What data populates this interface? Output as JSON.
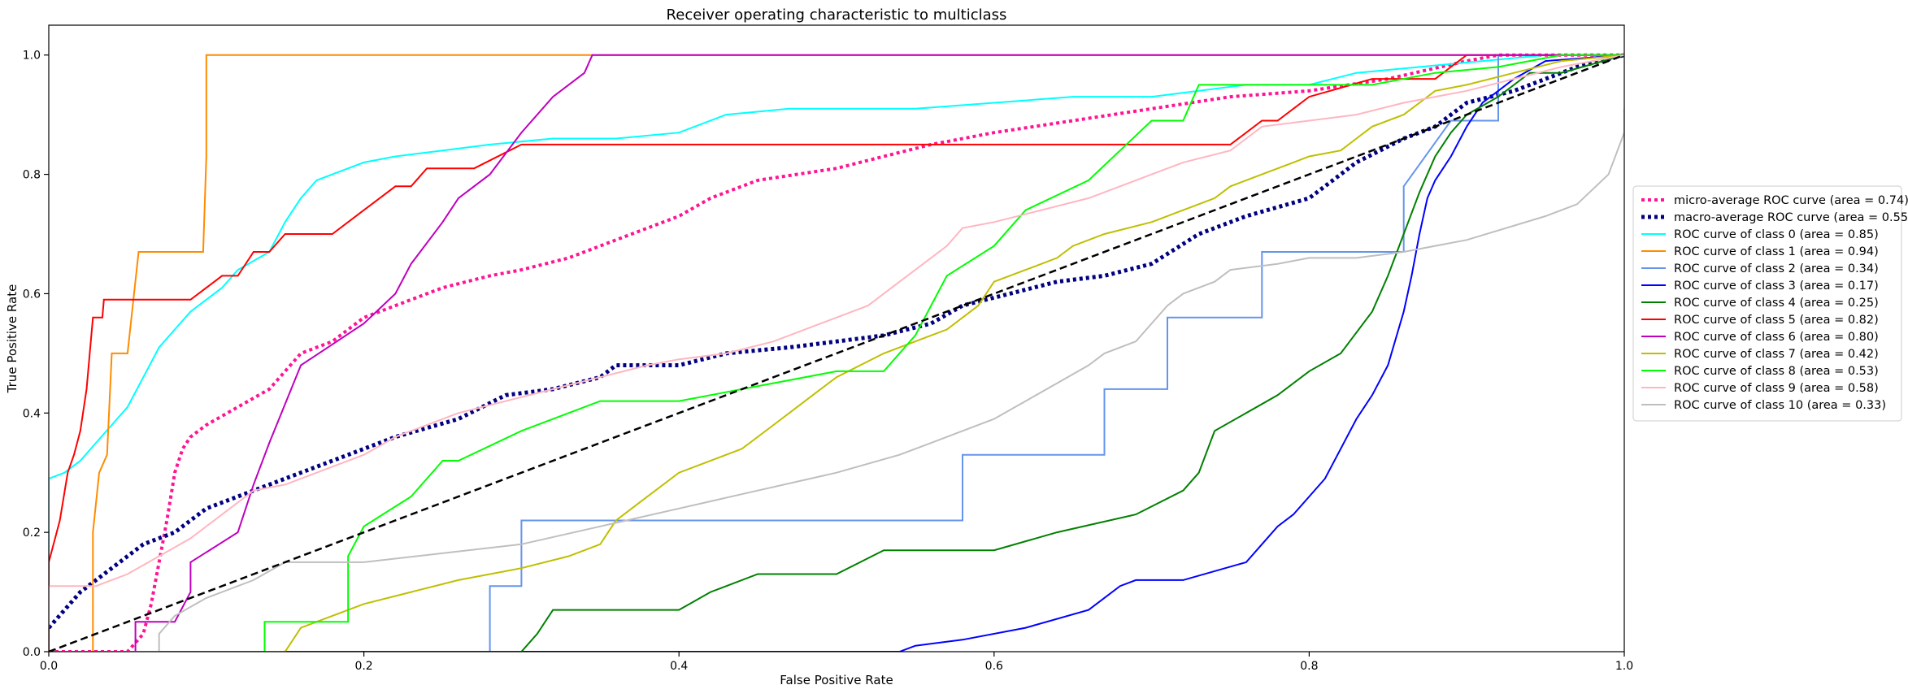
{
  "chart_data": {
    "type": "line",
    "title": "Receiver operating characteristic to multiclass",
    "xlabel": "False Positive Rate",
    "ylabel": "True Positive Rate",
    "xlim": [
      0.0,
      1.0
    ],
    "ylim": [
      0.0,
      1.05
    ],
    "grid": false,
    "legend_position": "center-right-outside",
    "xticks": [
      0.0,
      0.2,
      0.4,
      0.6,
      0.8,
      1.0
    ],
    "xtick_labels": [
      "0.0",
      "0.2",
      "0.4",
      "0.6",
      "0.8",
      "1.0"
    ],
    "yticks": [
      0.0,
      0.2,
      0.4,
      0.6,
      0.8,
      1.0
    ],
    "ytick_labels": [
      "0.0",
      "0.2",
      "0.4",
      "0.6",
      "0.8",
      "1.0"
    ],
    "series": [
      {
        "name": "micro-average ROC curve (area = 0.74)",
        "color": "#ff1493",
        "style": "dotted",
        "width": 4,
        "x": [
          0,
          0.05,
          0.06,
          0.065,
          0.07,
          0.075,
          0.08,
          0.085,
          0.09,
          0.1,
          0.12,
          0.14,
          0.16,
          0.18,
          0.2,
          0.22,
          0.25,
          0.28,
          0.3,
          0.33,
          0.36,
          0.4,
          0.42,
          0.45,
          0.5,
          0.53,
          0.56,
          0.6,
          0.65,
          0.7,
          0.75,
          0.8,
          0.85,
          0.9,
          0.92,
          0.96,
          1.0
        ],
        "y": [
          0,
          0,
          0.03,
          0.08,
          0.15,
          0.22,
          0.3,
          0.34,
          0.36,
          0.38,
          0.41,
          0.44,
          0.5,
          0.52,
          0.56,
          0.58,
          0.61,
          0.63,
          0.64,
          0.66,
          0.69,
          0.73,
          0.76,
          0.79,
          0.81,
          0.83,
          0.85,
          0.87,
          0.89,
          0.91,
          0.93,
          0.94,
          0.96,
          0.99,
          1.0,
          1.0,
          1.0
        ]
      },
      {
        "name": "macro-average ROC curve (area = 0.55)",
        "color": "#000080",
        "style": "dotted",
        "width": 5,
        "x": [
          0,
          0.02,
          0.04,
          0.06,
          0.08,
          0.1,
          0.13,
          0.16,
          0.19,
          0.22,
          0.26,
          0.29,
          0.32,
          0.35,
          0.36,
          0.4,
          0.43,
          0.47,
          0.5,
          0.53,
          0.56,
          0.58,
          0.61,
          0.64,
          0.67,
          0.7,
          0.73,
          0.76,
          0.8,
          0.83,
          0.86,
          0.88,
          0.9,
          0.93,
          0.95,
          0.97,
          1.0
        ],
        "y": [
          0.04,
          0.1,
          0.14,
          0.18,
          0.2,
          0.24,
          0.27,
          0.3,
          0.33,
          0.36,
          0.39,
          0.43,
          0.44,
          0.46,
          0.48,
          0.48,
          0.5,
          0.51,
          0.52,
          0.53,
          0.55,
          0.58,
          0.6,
          0.62,
          0.63,
          0.65,
          0.7,
          0.73,
          0.76,
          0.82,
          0.86,
          0.88,
          0.92,
          0.94,
          0.96,
          0.98,
          1.0
        ]
      },
      {
        "name": "ROC curve of class 0 (area = 0.85)",
        "color": "#00ffff",
        "style": "solid",
        "width": 2,
        "x": [
          0,
          0,
          0.01,
          0.02,
          0.03,
          0.04,
          0.05,
          0.06,
          0.07,
          0.08,
          0.09,
          0.1,
          0.11,
          0.12,
          0.14,
          0.15,
          0.16,
          0.17,
          0.18,
          0.2,
          0.22,
          0.25,
          0.28,
          0.32,
          0.36,
          0.4,
          0.43,
          0.47,
          0.5,
          0.55,
          0.6,
          0.65,
          0.7,
          0.73,
          0.76,
          0.8,
          0.83,
          0.87,
          0.91,
          0.95,
          1.0
        ],
        "y": [
          0,
          0.29,
          0.3,
          0.32,
          0.35,
          0.38,
          0.41,
          0.46,
          0.51,
          0.54,
          0.57,
          0.59,
          0.61,
          0.64,
          0.67,
          0.72,
          0.76,
          0.79,
          0.8,
          0.82,
          0.83,
          0.84,
          0.85,
          0.86,
          0.86,
          0.87,
          0.9,
          0.91,
          0.91,
          0.91,
          0.92,
          0.93,
          0.93,
          0.94,
          0.95,
          0.95,
          0.97,
          0.98,
          0.99,
          1.0,
          1.0
        ]
      },
      {
        "name": "ROC curve of class 1 (area = 0.94)",
        "color": "#ff8c00",
        "style": "solid",
        "width": 2,
        "x": [
          0,
          0.028,
          0.028,
          0.032,
          0.037,
          0.04,
          0.045,
          0.05,
          0.057,
          0.06,
          0.07,
          0.08,
          0.09,
          0.098,
          0.1,
          0.1,
          0.15,
          0.2,
          0.3,
          0.4,
          0.5,
          0.6,
          0.7,
          0.8,
          0.9,
          1.0
        ],
        "y": [
          0,
          0,
          0.2,
          0.3,
          0.33,
          0.5,
          0.5,
          0.5,
          0.67,
          0.67,
          0.67,
          0.67,
          0.67,
          0.67,
          0.83,
          1.0,
          1.0,
          1.0,
          1.0,
          1.0,
          1.0,
          1.0,
          1.0,
          1.0,
          1.0,
          1.0
        ]
      },
      {
        "name": "ROC curve of class 2 (area = 0.34)",
        "color": "#6495ed",
        "style": "solid",
        "width": 2,
        "x": [
          0,
          0.28,
          0.28,
          0.3,
          0.3,
          0.35,
          0.4,
          0.45,
          0.5,
          0.58,
          0.58,
          0.62,
          0.66,
          0.67,
          0.67,
          0.69,
          0.7,
          0.71,
          0.71,
          0.73,
          0.75,
          0.77,
          0.77,
          0.8,
          0.82,
          0.83,
          0.84,
          0.85,
          0.86,
          0.86,
          0.89,
          0.91,
          0.92,
          0.92,
          0.95,
          1.0
        ],
        "y": [
          0,
          0,
          0.11,
          0.11,
          0.22,
          0.22,
          0.22,
          0.22,
          0.22,
          0.22,
          0.33,
          0.33,
          0.33,
          0.33,
          0.44,
          0.44,
          0.44,
          0.44,
          0.56,
          0.56,
          0.56,
          0.56,
          0.67,
          0.67,
          0.67,
          0.67,
          0.67,
          0.67,
          0.67,
          0.78,
          0.89,
          0.89,
          0.89,
          1.0,
          1.0,
          1.0
        ]
      },
      {
        "name": "ROC curve of class 3 (area = 0.17)",
        "color": "#0000ff",
        "style": "solid",
        "width": 2,
        "x": [
          0,
          0.54,
          0.55,
          0.58,
          0.62,
          0.66,
          0.68,
          0.69,
          0.72,
          0.76,
          0.77,
          0.78,
          0.79,
          0.8,
          0.81,
          0.82,
          0.83,
          0.84,
          0.85,
          0.86,
          0.865,
          0.87,
          0.875,
          0.88,
          0.89,
          0.9,
          0.91,
          0.92,
          0.93,
          0.95,
          1.0
        ],
        "y": [
          0,
          0,
          0.01,
          0.02,
          0.04,
          0.07,
          0.11,
          0.12,
          0.12,
          0.15,
          0.18,
          0.21,
          0.23,
          0.26,
          0.29,
          0.34,
          0.39,
          0.43,
          0.48,
          0.57,
          0.63,
          0.7,
          0.76,
          0.79,
          0.83,
          0.88,
          0.92,
          0.94,
          0.96,
          0.99,
          1.0
        ]
      },
      {
        "name": "ROC curve of class 4 (area = 0.25)",
        "color": "#008000",
        "style": "solid",
        "width": 2,
        "x": [
          0,
          0.3,
          0.31,
          0.32,
          0.4,
          0.42,
          0.45,
          0.5,
          0.53,
          0.6,
          0.64,
          0.69,
          0.72,
          0.73,
          0.74,
          0.76,
          0.78,
          0.8,
          0.82,
          0.84,
          0.85,
          0.86,
          0.87,
          0.88,
          0.89,
          0.9,
          0.92,
          0.94,
          0.96,
          1.0
        ],
        "y": [
          0,
          0,
          0.03,
          0.07,
          0.07,
          0.1,
          0.13,
          0.13,
          0.17,
          0.17,
          0.2,
          0.23,
          0.27,
          0.3,
          0.37,
          0.4,
          0.43,
          0.47,
          0.5,
          0.57,
          0.63,
          0.7,
          0.77,
          0.83,
          0.87,
          0.9,
          0.93,
          0.97,
          0.97,
          1.0
        ]
      },
      {
        "name": "ROC curve of class 5 (area = 0.82)",
        "color": "#ff0000",
        "style": "solid",
        "width": 2,
        "x": [
          0,
          0,
          0.007,
          0.012,
          0.016,
          0.02,
          0.024,
          0.028,
          0.034,
          0.035,
          0.04,
          0.05,
          0.09,
          0.11,
          0.12,
          0.13,
          0.14,
          0.15,
          0.16,
          0.18,
          0.2,
          0.22,
          0.23,
          0.24,
          0.27,
          0.3,
          0.35,
          0.45,
          0.5,
          0.6,
          0.7,
          0.75,
          0.77,
          0.78,
          0.8,
          0.84,
          0.88,
          0.9,
          0.92,
          0.95,
          1.0
        ],
        "y": [
          0,
          0.15,
          0.22,
          0.3,
          0.33,
          0.37,
          0.44,
          0.56,
          0.56,
          0.59,
          0.59,
          0.59,
          0.59,
          0.63,
          0.63,
          0.67,
          0.67,
          0.7,
          0.7,
          0.7,
          0.74,
          0.78,
          0.78,
          0.81,
          0.81,
          0.85,
          0.85,
          0.85,
          0.85,
          0.85,
          0.85,
          0.85,
          0.89,
          0.89,
          0.93,
          0.96,
          0.96,
          1.0,
          1.0,
          1.0,
          1.0
        ]
      },
      {
        "name": "ROC curve of class 6 (area = 0.80)",
        "color": "#bf00bf",
        "style": "solid",
        "width": 2,
        "x": [
          0,
          0.055,
          0.055,
          0.08,
          0.09,
          0.09,
          0.12,
          0.13,
          0.14,
          0.16,
          0.2,
          0.22,
          0.23,
          0.25,
          0.26,
          0.28,
          0.3,
          0.32,
          0.33,
          0.34,
          0.345,
          0.35,
          0.5,
          0.75,
          1.0
        ],
        "y": [
          0,
          0,
          0.05,
          0.05,
          0.1,
          0.15,
          0.2,
          0.28,
          0.35,
          0.48,
          0.55,
          0.6,
          0.65,
          0.72,
          0.76,
          0.8,
          0.87,
          0.93,
          0.95,
          0.97,
          1.0,
          1.0,
          1.0,
          1.0,
          1.0
        ]
      },
      {
        "name": "ROC curve of class 7 (area = 0.42)",
        "color": "#bfbf00",
        "style": "solid",
        "width": 2,
        "x": [
          0,
          0.15,
          0.16,
          0.18,
          0.2,
          0.23,
          0.26,
          0.3,
          0.33,
          0.35,
          0.36,
          0.38,
          0.4,
          0.44,
          0.46,
          0.48,
          0.5,
          0.53,
          0.57,
          0.59,
          0.6,
          0.62,
          0.64,
          0.65,
          0.67,
          0.7,
          0.72,
          0.74,
          0.75,
          0.77,
          0.79,
          0.8,
          0.82,
          0.83,
          0.84,
          0.86,
          0.87,
          0.88,
          0.9,
          0.93,
          0.96,
          1.0
        ],
        "y": [
          0,
          0,
          0.04,
          0.06,
          0.08,
          0.1,
          0.12,
          0.14,
          0.16,
          0.18,
          0.22,
          0.26,
          0.3,
          0.34,
          0.38,
          0.42,
          0.46,
          0.5,
          0.54,
          0.58,
          0.62,
          0.64,
          0.66,
          0.68,
          0.7,
          0.72,
          0.74,
          0.76,
          0.78,
          0.8,
          0.82,
          0.83,
          0.84,
          0.86,
          0.88,
          0.9,
          0.92,
          0.94,
          0.95,
          0.97,
          0.99,
          1.0
        ]
      },
      {
        "name": "ROC curve of class 8 (area = 0.53)",
        "color": "#00ff00",
        "style": "solid",
        "width": 2,
        "x": [
          0,
          0.137,
          0.137,
          0.19,
          0.19,
          0.2,
          0.23,
          0.25,
          0.26,
          0.3,
          0.35,
          0.4,
          0.5,
          0.53,
          0.55,
          0.56,
          0.57,
          0.6,
          0.62,
          0.66,
          0.68,
          0.7,
          0.72,
          0.73,
          0.76,
          0.8,
          0.84,
          0.88,
          0.92,
          0.96,
          1.0
        ],
        "y": [
          0,
          0,
          0.05,
          0.05,
          0.16,
          0.21,
          0.26,
          0.32,
          0.32,
          0.37,
          0.42,
          0.42,
          0.47,
          0.47,
          0.53,
          0.58,
          0.63,
          0.68,
          0.74,
          0.79,
          0.84,
          0.89,
          0.89,
          0.95,
          0.95,
          0.95,
          0.95,
          0.97,
          0.98,
          1.0,
          1.0
        ]
      },
      {
        "name": "ROC curve of class 9 (area = 0.58)",
        "color": "#ffb6c1",
        "style": "solid",
        "width": 2,
        "x": [
          0,
          0,
          0.03,
          0.05,
          0.07,
          0.09,
          0.11,
          0.13,
          0.15,
          0.17,
          0.2,
          0.22,
          0.24,
          0.26,
          0.29,
          0.32,
          0.35,
          0.38,
          0.4,
          0.43,
          0.46,
          0.49,
          0.52,
          0.54,
          0.56,
          0.57,
          0.58,
          0.6,
          0.63,
          0.66,
          0.68,
          0.7,
          0.72,
          0.75,
          0.76,
          0.77,
          0.8,
          0.83,
          0.86,
          0.9,
          0.93,
          0.96,
          1.0
        ],
        "y": [
          0.04,
          0.11,
          0.11,
          0.13,
          0.16,
          0.19,
          0.23,
          0.27,
          0.28,
          0.3,
          0.33,
          0.36,
          0.38,
          0.4,
          0.42,
          0.44,
          0.46,
          0.48,
          0.49,
          0.5,
          0.52,
          0.55,
          0.58,
          0.62,
          0.66,
          0.68,
          0.71,
          0.72,
          0.74,
          0.76,
          0.78,
          0.8,
          0.82,
          0.84,
          0.86,
          0.88,
          0.89,
          0.9,
          0.92,
          0.94,
          0.96,
          0.98,
          1.0
        ]
      },
      {
        "name": "ROC curve of class 10 (area = 0.33)",
        "color": "#bfbfbf",
        "style": "solid",
        "width": 2,
        "x": [
          0,
          0.07,
          0.07,
          0.08,
          0.1,
          0.13,
          0.15,
          0.2,
          0.3,
          0.35,
          0.4,
          0.45,
          0.5,
          0.54,
          0.57,
          0.6,
          0.62,
          0.64,
          0.66,
          0.67,
          0.69,
          0.7,
          0.71,
          0.72,
          0.73,
          0.74,
          0.75,
          0.78,
          0.8,
          0.83,
          0.86,
          0.9,
          0.95,
          0.97,
          0.99,
          1.0,
          1.0
        ],
        "y": [
          0,
          0,
          0.03,
          0.06,
          0.09,
          0.12,
          0.15,
          0.15,
          0.18,
          0.21,
          0.24,
          0.27,
          0.3,
          0.33,
          0.36,
          0.39,
          0.42,
          0.45,
          0.48,
          0.5,
          0.52,
          0.55,
          0.58,
          0.6,
          0.61,
          0.62,
          0.64,
          0.65,
          0.66,
          0.66,
          0.67,
          0.69,
          0.73,
          0.75,
          0.8,
          0.87,
          0.91
        ]
      },
      {
        "name": "",
        "color": "#000000",
        "style": "dashed",
        "width": 2.5,
        "legend": false,
        "x": [
          0,
          1
        ],
        "y": [
          0,
          1
        ]
      }
    ]
  }
}
